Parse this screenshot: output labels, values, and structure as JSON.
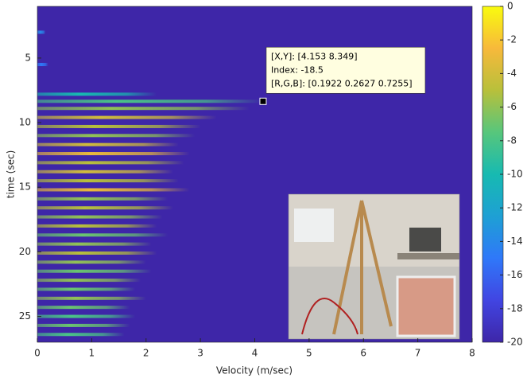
{
  "chart_data": {
    "type": "heatmap",
    "xlabel": "Velocity (m/sec)",
    "ylabel": "time (sec)",
    "xlim": [
      0,
      8
    ],
    "xticks": [
      0,
      1,
      2,
      3,
      4,
      5,
      6,
      7,
      8
    ],
    "ylim": [
      1,
      27
    ],
    "yticks": [
      5,
      10,
      15,
      20,
      25
    ],
    "y_reversed": true,
    "clim": [
      -20,
      0
    ],
    "cticks": [
      -20,
      -18,
      -16,
      -14,
      -12,
      -10,
      -8,
      -6,
      -4,
      -2,
      0
    ],
    "colormap": [
      "#3e26a8",
      "#4145e2",
      "#2f78f9",
      "#1ea0d4",
      "#17bab1",
      "#57c67c",
      "#b8c03b",
      "#f7b93b",
      "#f9fb0e"
    ],
    "rows": {
      "time": [
        3,
        5.5,
        7.8,
        8.35,
        8.9,
        9.6,
        10.3,
        11,
        11.7,
        12.4,
        13.1,
        13.8,
        14.5,
        15.2,
        15.9,
        16.6,
        17.3,
        18,
        18.7,
        19.4,
        20.1,
        20.8,
        21.5,
        22.2,
        22.9,
        23.6,
        24.3,
        25,
        25.7,
        26.4
      ],
      "extent": [
        0.15,
        0.2,
        2.2,
        4.15,
        3.9,
        3.3,
        3.0,
        2.9,
        2.6,
        2.8,
        2.7,
        2.5,
        2.6,
        2.8,
        2.4,
        2.5,
        2.3,
        2.2,
        2.4,
        2.1,
        2.2,
        2.0,
        2.1,
        1.9,
        1.8,
        2.0,
        1.7,
        1.8,
        1.7,
        1.6
      ],
      "peak": [
        -14,
        -15,
        -10,
        -8,
        -6,
        -4,
        -5,
        -6,
        -4,
        -3,
        -5,
        -4,
        -5,
        -3,
        -6,
        -5,
        -6,
        -5,
        -7,
        -6,
        -5,
        -6,
        -7,
        -6,
        -7,
        -6,
        -7,
        -8,
        -7,
        -8
      ]
    },
    "datatip": {
      "x": 4.153,
      "y": 8.349,
      "lines": [
        "[X,Y]: [4.153 8.349]",
        "Index: -18.5",
        "[R,G,B]: [0.1922 0.2627 0.7255]"
      ]
    }
  }
}
